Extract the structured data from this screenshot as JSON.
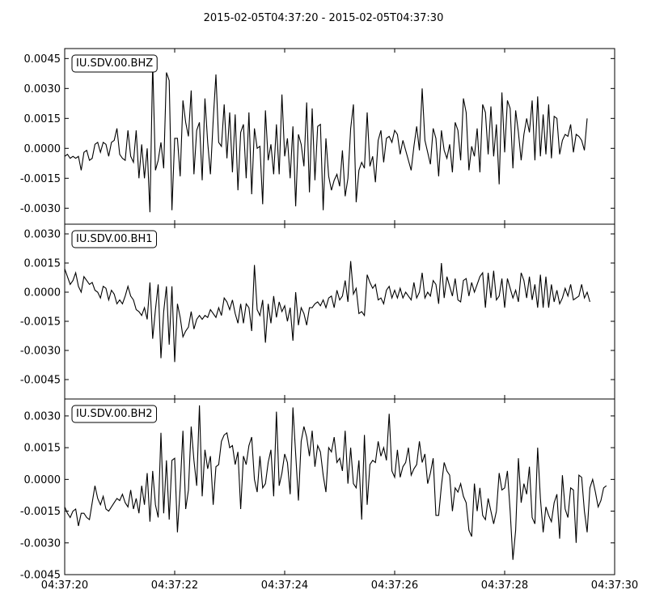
{
  "title": "2015-02-05T04:37:20  -  2015-02-05T04:37:30",
  "chart_data": {
    "type": "line",
    "title": "2015-02-05T04:37:20  -  2015-02-05T04:37:30",
    "x_start_time": "04:37:20",
    "x_end_time": "04:37:30",
    "x_ticks": [
      "04:37:20",
      "04:37:22",
      "04:37:24",
      "04:37:26",
      "04:37:28",
      "04:37:30"
    ],
    "sampling_interval_s": 0.05,
    "panels": [
      {
        "name": "IU.SDV.00.BHZ",
        "ylim": [
          -0.0038,
          0.005
        ],
        "y_ticks": [
          "0.0045",
          "0.0030",
          "0.0015",
          "0.0000",
          "-0.0015",
          "-0.0030"
        ],
        "tick_values": [
          0.0045,
          0.003,
          0.0015,
          0.0,
          -0.0015,
          -0.003
        ],
        "values": [
          -0.0004,
          -0.0003,
          -0.0005,
          -0.0004,
          -0.0005,
          -0.0004,
          -0.0011,
          -0.0002,
          -0.0001,
          -0.0006,
          -0.0005,
          0.0002,
          0.0003,
          -0.0002,
          0.0003,
          0.0002,
          -0.0004,
          0.0003,
          0.0004,
          0.001,
          -0.0003,
          -0.0005,
          -0.0006,
          0.0009,
          -0.0004,
          -0.0007,
          0.0009,
          -0.0015,
          0.0002,
          -0.0015,
          0.0,
          -0.0032,
          0.0043,
          -0.0011,
          -0.0006,
          0.0003,
          -0.001,
          0.0038,
          0.0034,
          -0.0031,
          0.0005,
          0.0005,
          -0.0014,
          0.0024,
          0.0013,
          0.0006,
          0.0029,
          -0.0013,
          0.0009,
          0.0013,
          -0.0016,
          0.0025,
          0.0003,
          -0.0013,
          0.0014,
          0.0037,
          0.0003,
          0.0001,
          0.0022,
          -0.0005,
          0.0018,
          -0.0012,
          0.0017,
          -0.0021,
          0.0008,
          0.0012,
          -0.0015,
          0.0018,
          -0.0023,
          0.001,
          0.0,
          0.0001,
          -0.0028,
          0.0019,
          -0.0006,
          0.0002,
          -0.0013,
          0.0012,
          -0.0013,
          0.0027,
          -0.0004,
          0.0005,
          -0.0015,
          0.0011,
          -0.0029,
          0.0007,
          0.0002,
          -0.0009,
          0.0023,
          -0.0022,
          0.002,
          -0.0016,
          0.0011,
          0.0012,
          -0.0031,
          0.0005,
          -0.0014,
          -0.0021,
          -0.0016,
          -0.0013,
          -0.0019,
          -0.0001,
          -0.0024,
          -0.0015,
          0.001,
          0.0022,
          -0.0027,
          -0.0011,
          -0.0007,
          -0.001,
          0.0018,
          -0.0009,
          -0.0004,
          -0.0017,
          0.0004,
          0.0009,
          -0.0007,
          0.0005,
          0.0006,
          0.0003,
          0.0009,
          0.0007,
          -0.0003,
          0.0004,
          -0.0001,
          -0.0006,
          -0.0011,
          0.0001,
          0.0011,
          -0.0001,
          0.003,
          0.0004,
          -0.0002,
          -0.0008,
          0.001,
          0.0005,
          -0.0014,
          0.0009,
          -0.0001,
          -0.0005,
          0.0002,
          -0.0012,
          0.0013,
          0.0009,
          -0.0006,
          0.0025,
          0.0018,
          -0.0011,
          0.0001,
          -0.0004,
          0.001,
          -0.0012,
          0.0022,
          0.0018,
          -0.0003,
          0.0021,
          -0.0004,
          0.0012,
          -0.0018,
          0.0028,
          -0.0002,
          0.0024,
          0.002,
          -0.001,
          0.0019,
          0.0008,
          -0.0006,
          0.0007,
          0.0015,
          0.0008,
          0.0024,
          -0.0006,
          0.0026,
          -0.0004,
          0.0017,
          -0.0003,
          0.0022,
          -0.0005,
          0.0016,
          0.0015,
          -0.0003,
          0.0004,
          0.0007,
          0.0006,
          0.0012,
          -0.0002,
          0.0007,
          0.0006,
          0.0004,
          -0.0001,
          0.0015
        ],
        "label_box": true
      },
      {
        "name": "IU.SDV.00.BH1",
        "ylim": [
          -0.0055,
          0.0035
        ],
        "y_ticks": [
          "0.0030",
          "0.0015",
          "0.0000",
          "-0.0015",
          "-0.0030",
          "-0.0045"
        ],
        "tick_values": [
          0.003,
          0.0015,
          0.0,
          -0.0015,
          -0.003,
          -0.0045
        ],
        "values": [
          0.0012,
          0.0008,
          0.0004,
          0.0006,
          0.001,
          0.0003,
          0.0,
          0.0008,
          0.0006,
          0.0004,
          0.0005,
          0.0001,
          0.0,
          -0.0003,
          0.0003,
          0.0002,
          -0.0004,
          0.0001,
          -0.0001,
          -0.0006,
          -0.0004,
          -0.0006,
          -0.0002,
          0.0003,
          -0.0002,
          -0.0004,
          -0.0009,
          -0.001,
          -0.0012,
          -0.0008,
          -0.0014,
          0.0005,
          -0.0024,
          -0.0009,
          0.0004,
          -0.0034,
          -0.001,
          0.0003,
          -0.0027,
          0.0003,
          -0.0036,
          -0.0006,
          -0.0013,
          -0.0023,
          -0.002,
          -0.0018,
          -0.001,
          -0.0019,
          -0.0014,
          -0.0012,
          -0.0014,
          -0.0012,
          -0.0013,
          -0.0009,
          -0.0011,
          -0.0013,
          -0.0008,
          -0.0012,
          -0.0003,
          -0.0005,
          -0.0009,
          -0.0004,
          -0.0011,
          -0.0016,
          -0.0006,
          -0.0016,
          -0.0006,
          -0.0008,
          -0.002,
          0.0014,
          -0.0009,
          -0.0012,
          -0.0004,
          -0.0026,
          -0.0006,
          -0.0016,
          -0.0002,
          -0.0013,
          -0.0005,
          -0.001,
          -0.0007,
          -0.0015,
          -0.0008,
          -0.0025,
          0.0,
          -0.0017,
          -0.0008,
          -0.0011,
          -0.0017,
          -0.0008,
          -0.0008,
          -0.0006,
          -0.0005,
          -0.0007,
          -0.0004,
          -0.0008,
          -0.0003,
          -0.0002,
          -0.0008,
          0.0001,
          -0.0004,
          -0.0002,
          0.0006,
          -0.0005,
          0.0016,
          -0.0001,
          0.0002,
          -0.0011,
          -0.001,
          -0.0012,
          0.0009,
          0.0005,
          0.0002,
          0.0004,
          -0.0004,
          -0.0003,
          -0.0006,
          0.0001,
          0.0003,
          -0.0003,
          0.0001,
          -0.0003,
          0.0002,
          -0.0003,
          0.0,
          -0.0002,
          -0.0004,
          0.0005,
          -0.0003,
          0.0,
          0.001,
          -0.0003,
          0.0,
          -0.0002,
          0.0006,
          0.0004,
          -0.0006,
          0.0015,
          -0.0003,
          0.0008,
          0.0003,
          -0.0002,
          0.0007,
          -0.0004,
          -0.0005,
          0.0006,
          0.0007,
          -0.0002,
          0.0005,
          0.0,
          0.0004,
          0.0008,
          0.001,
          -0.0008,
          0.001,
          -0.0003,
          0.0011,
          -0.0004,
          -0.0002,
          0.0007,
          -0.0008,
          0.0007,
          0.0002,
          -0.0003,
          0.0001,
          -0.0005,
          0.001,
          0.0006,
          -0.0003,
          0.0008,
          -0.0004,
          0.0004,
          -0.0008,
          0.0009,
          -0.0008,
          0.0008,
          -0.0008,
          0.0004,
          -0.0005,
          0.0001,
          -0.0006,
          -0.0003,
          0.0002,
          -0.0002,
          0.0004,
          -0.0004,
          -0.0003,
          -0.0002,
          0.0004,
          -0.0003,
          0.0,
          -0.0005
        ],
        "label_box": true
      },
      {
        "name": "IU.SDV.00.BH2",
        "ylim": [
          -0.0045,
          0.0038
        ],
        "y_ticks": [
          "0.0030",
          "0.0015",
          "0.0000",
          "-0.0015",
          "-0.0030",
          "-0.0045"
        ],
        "tick_values": [
          0.003,
          0.0015,
          0.0,
          -0.0015,
          -0.003,
          -0.0045
        ],
        "values": [
          -0.0013,
          -0.0016,
          -0.0018,
          -0.0015,
          -0.0014,
          -0.0022,
          -0.0016,
          -0.0016,
          -0.0018,
          -0.0019,
          -0.0011,
          -0.0003,
          -0.0009,
          -0.0012,
          -0.0008,
          -0.0014,
          -0.0015,
          -0.0013,
          -0.0011,
          -0.0009,
          -0.001,
          -0.0007,
          -0.0011,
          -0.0013,
          -0.0005,
          -0.0014,
          -0.0009,
          -0.0016,
          -0.0003,
          -0.0012,
          0.0003,
          -0.002,
          0.0004,
          -0.0012,
          -0.0018,
          0.0022,
          -0.0016,
          0.0009,
          -0.0019,
          0.0009,
          0.001,
          -0.0025,
          -0.0004,
          0.0023,
          -0.0014,
          -0.0005,
          0.0025,
          0.0009,
          -0.0003,
          0.0035,
          -0.0008,
          0.0014,
          0.0005,
          0.0011,
          -0.0012,
          0.0006,
          0.0007,
          0.0018,
          0.0021,
          0.0022,
          0.0015,
          0.0016,
          0.0007,
          0.0013,
          -0.0014,
          0.0011,
          0.0007,
          0.0016,
          0.002,
          0.0,
          -0.0006,
          0.0011,
          -0.0004,
          -0.0002,
          0.0008,
          0.0014,
          -0.0008,
          0.0032,
          -0.0003,
          0.0003,
          0.0012,
          0.0008,
          -0.0007,
          0.0034,
          0.0012,
          -0.001,
          0.0018,
          0.0025,
          0.002,
          0.0011,
          0.0023,
          0.0006,
          0.0016,
          0.0013,
          0.0002,
          -0.0006,
          0.0015,
          0.0013,
          0.002,
          0.0008,
          0.001,
          0.0004,
          0.0023,
          -0.0002,
          0.0015,
          -0.0002,
          -0.0004,
          0.0009,
          -0.0019,
          0.0021,
          -0.0012,
          0.0007,
          0.0009,
          0.0008,
          0.0018,
          0.0011,
          0.0015,
          0.0009,
          0.0031,
          0.0004,
          0.0001,
          0.0014,
          0.0001,
          0.0006,
          0.0008,
          0.0015,
          0.0002,
          0.0005,
          0.0007,
          0.0018,
          0.0008,
          0.0012,
          -0.0002,
          0.0003,
          0.001,
          -0.0017,
          -0.0017,
          -0.0003,
          0.0008,
          0.0004,
          0.0002,
          -0.0015,
          -0.0004,
          -0.0006,
          -0.0002,
          -0.0008,
          -0.0011,
          -0.0024,
          -0.0027,
          -0.0002,
          -0.0015,
          -0.0004,
          -0.0017,
          -0.0019,
          -0.0009,
          -0.0015,
          -0.0021,
          -0.0015,
          0.0003,
          -0.0005,
          -0.0004,
          0.0004,
          -0.0015,
          -0.0038,
          -0.0024,
          0.001,
          -0.0011,
          -0.0002,
          -0.0007,
          0.0006,
          -0.0018,
          -0.0021,
          0.0015,
          -0.0009,
          -0.0025,
          -0.0013,
          -0.0017,
          -0.002,
          -0.0011,
          -0.0007,
          -0.0028,
          0.0002,
          -0.0014,
          -0.0018,
          -0.0004,
          -0.0005,
          -0.003,
          0.0002,
          0.0001,
          -0.0015,
          -0.0025,
          -0.0004,
          0.0,
          -0.0006,
          -0.0013,
          -0.001,
          -0.0004,
          -0.0003
        ],
        "label_box": true
      }
    ]
  }
}
